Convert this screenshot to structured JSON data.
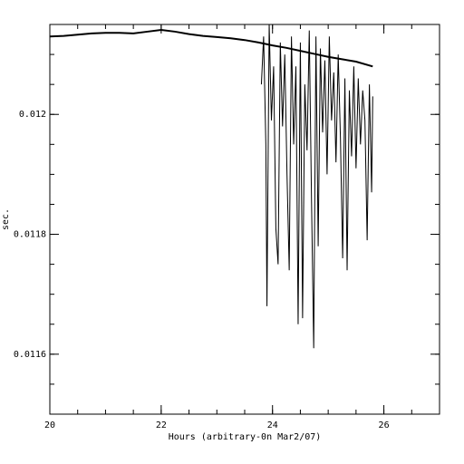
{
  "chart_data": {
    "type": "line",
    "xlabel": "Hours (arbitrary-0n Mar2/07)",
    "ylabel": "sec.",
    "xlim": [
      20,
      27
    ],
    "xticks": [
      20,
      22,
      24,
      26
    ],
    "ylim": [
      0.0115,
      0.01215
    ],
    "yticks": [
      0.0116,
      0.0118,
      0.012
    ],
    "series": [
      {
        "color": "#000000",
        "x": [
          20,
          20.25,
          20.5,
          20.75,
          21,
          21.25,
          21.5,
          21.75,
          22,
          22.25,
          22.5,
          22.75,
          23,
          23.25,
          23.5,
          23.75,
          24,
          24.25,
          24.5,
          24.75,
          25,
          25.25,
          25.5,
          25.8
        ],
        "values": [
          0.01213,
          0.012131,
          0.012133,
          0.012135,
          0.012136,
          0.012136,
          0.012135,
          0.012138,
          0.012141,
          0.012138,
          0.012134,
          0.012131,
          0.012129,
          0.012127,
          0.012124,
          0.01212,
          0.012115,
          0.012111,
          0.012106,
          0.012101,
          0.012096,
          0.012092,
          0.012088,
          0.01208
        ]
      },
      {
        "color": "#000000",
        "x": [
          23.8,
          23.84,
          23.88,
          23.9,
          23.94,
          23.98,
          24.02,
          24.06,
          24.1,
          24.14,
          24.18,
          24.22,
          24.26,
          24.3,
          24.34,
          24.38,
          24.42,
          24.46,
          24.5,
          24.54,
          24.58,
          24.62,
          24.66,
          24.7,
          24.74,
          24.78,
          24.82,
          24.86,
          24.9,
          24.94,
          24.98,
          25.02,
          25.06,
          25.1,
          25.14,
          25.18,
          25.22,
          25.26,
          25.3,
          25.34,
          25.38,
          25.42,
          25.46,
          25.5,
          25.54,
          25.58,
          25.62,
          25.66,
          25.7,
          25.74,
          25.78,
          25.8
        ],
        "values": [
          0.01205,
          0.01213,
          0.01195,
          0.01168,
          0.01215,
          0.01199,
          0.01208,
          0.01181,
          0.01175,
          0.01212,
          0.01198,
          0.0121,
          0.0119,
          0.01174,
          0.01213,
          0.01195,
          0.01208,
          0.01165,
          0.01212,
          0.01166,
          0.01205,
          0.01194,
          0.01214,
          0.01186,
          0.01161,
          0.01213,
          0.01178,
          0.01211,
          0.01197,
          0.01209,
          0.0119,
          0.01213,
          0.01199,
          0.01207,
          0.01192,
          0.0121,
          0.01196,
          0.01176,
          0.01206,
          0.01174,
          0.01204,
          0.01193,
          0.01208,
          0.01191,
          0.01206,
          0.01195,
          0.01204,
          0.01199,
          0.01179,
          0.01205,
          0.01187,
          0.01203
        ]
      }
    ]
  }
}
